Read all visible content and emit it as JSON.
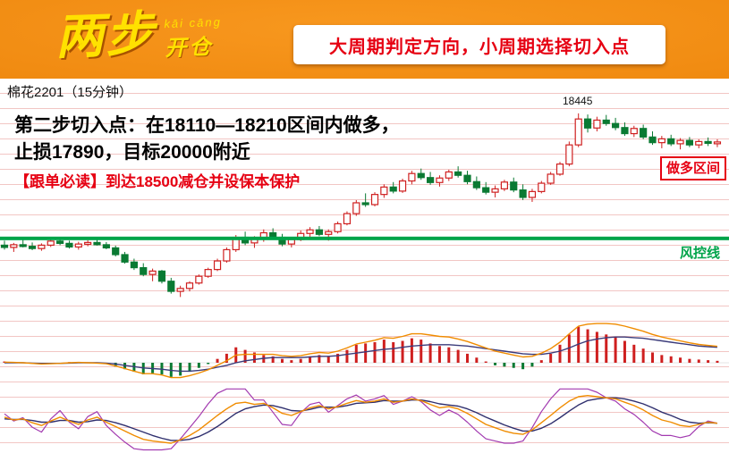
{
  "header": {
    "logo_main": "两步",
    "logo_pinyin": "kāi cāng",
    "logo_sub": "开仓",
    "slogan": "大周期判定方向，小周期选择切入点"
  },
  "chart_header": {
    "instrument": "棉花2201（15分钟）"
  },
  "annotations": {
    "entry_line1": "第二步切入点：在18110—18210区间内做多，",
    "entry_line2": "止损17890，目标20000附近",
    "follow_note": "【跟单必读】到达18500减仓并设保本保护",
    "peak_label": "18445",
    "risk_line_label": "风控线",
    "long_zone_label": "做多区间"
  },
  "colors": {
    "banner_orange": "#f08a10",
    "accent_red": "#e60012",
    "logo_yellow": "#ffe100",
    "up": "#cf1f1f",
    "down": "#0a7a33",
    "risk_line": "#00a44a",
    "dif": "#f08c00",
    "dea": "#3b3b7a",
    "k_line": "#f08c00",
    "d_line": "#2f2f6e",
    "j_line": "#a23ab0"
  },
  "chart_data": {
    "type": "candlestick",
    "title": "棉花2201 15分钟K线",
    "instrument": "棉花2201",
    "timeframe": "15分钟",
    "price_axis": {
      "min": 17580,
      "max": 18500
    },
    "risk_line_value": 17890,
    "peak_value": 18445,
    "entry_zone": [
      18110,
      18210
    ],
    "stop_loss": 17890,
    "target": 20000,
    "reduce_level": 18500,
    "candles": [
      [
        17860,
        17880,
        17840,
        17850
      ],
      [
        17850,
        17870,
        17830,
        17862
      ],
      [
        17862,
        17885,
        17850,
        17855
      ],
      [
        17855,
        17872,
        17838,
        17845
      ],
      [
        17845,
        17868,
        17835,
        17860
      ],
      [
        17860,
        17888,
        17852,
        17878
      ],
      [
        17878,
        17890,
        17860,
        17868
      ],
      [
        17868,
        17880,
        17845,
        17852
      ],
      [
        17852,
        17875,
        17840,
        17865
      ],
      [
        17865,
        17882,
        17855,
        17872
      ],
      [
        17872,
        17886,
        17858,
        17862
      ],
      [
        17862,
        17874,
        17842,
        17848
      ],
      [
        17848,
        17858,
        17810,
        17818
      ],
      [
        17818,
        17830,
        17778,
        17785
      ],
      [
        17785,
        17800,
        17750,
        17760
      ],
      [
        17760,
        17780,
        17722,
        17730
      ],
      [
        17730,
        17756,
        17700,
        17745
      ],
      [
        17745,
        17750,
        17690,
        17700
      ],
      [
        17700,
        17715,
        17645,
        17655
      ],
      [
        17655,
        17680,
        17630,
        17668
      ],
      [
        17668,
        17700,
        17655,
        17692
      ],
      [
        17692,
        17730,
        17685,
        17722
      ],
      [
        17722,
        17760,
        17715,
        17752
      ],
      [
        17752,
        17800,
        17745,
        17790
      ],
      [
        17790,
        17850,
        17782,
        17840
      ],
      [
        17840,
        17905,
        17830,
        17895
      ],
      [
        17895,
        17920,
        17860,
        17870
      ],
      [
        17870,
        17900,
        17848,
        17888
      ],
      [
        17888,
        17930,
        17875,
        17915
      ],
      [
        17915,
        17935,
        17885,
        17895
      ],
      [
        17895,
        17910,
        17855,
        17865
      ],
      [
        17865,
        17895,
        17850,
        17885
      ],
      [
        17885,
        17925,
        17878,
        17912
      ],
      [
        17912,
        17940,
        17895,
        17928
      ],
      [
        17928,
        17945,
        17900,
        17908
      ],
      [
        17908,
        17930,
        17880,
        17920
      ],
      [
        17920,
        17965,
        17912,
        17955
      ],
      [
        17955,
        18010,
        17948,
        18000
      ],
      [
        18000,
        18060,
        17990,
        18048
      ],
      [
        18048,
        18090,
        18030,
        18040
      ],
      [
        18040,
        18095,
        18032,
        18085
      ],
      [
        18085,
        18130,
        18070,
        18118
      ],
      [
        18118,
        18140,
        18090,
        18100
      ],
      [
        18100,
        18155,
        18092,
        18145
      ],
      [
        18145,
        18190,
        18130,
        18178
      ],
      [
        18178,
        18200,
        18150,
        18160
      ],
      [
        18160,
        18185,
        18128,
        18138
      ],
      [
        18138,
        18170,
        18120,
        18158
      ],
      [
        18158,
        18195,
        18145,
        18185
      ],
      [
        18185,
        18210,
        18160,
        18170
      ],
      [
        18170,
        18190,
        18130,
        18142
      ],
      [
        18142,
        18165,
        18105,
        18115
      ],
      [
        18115,
        18140,
        18085,
        18095
      ],
      [
        18095,
        18125,
        18072,
        18110
      ],
      [
        18110,
        18150,
        18100,
        18140
      ],
      [
        18140,
        18160,
        18095,
        18105
      ],
      [
        18105,
        18130,
        18060,
        18072
      ],
      [
        18072,
        18110,
        18052,
        18098
      ],
      [
        18098,
        18145,
        18090,
        18135
      ],
      [
        18135,
        18185,
        18128,
        18175
      ],
      [
        18175,
        18230,
        18168,
        18220
      ],
      [
        18220,
        18320,
        18210,
        18305
      ],
      [
        18305,
        18445,
        18295,
        18420
      ],
      [
        18420,
        18440,
        18360,
        18380
      ],
      [
        18380,
        18430,
        18365,
        18415
      ],
      [
        18415,
        18438,
        18390,
        18400
      ],
      [
        18400,
        18425,
        18370,
        18382
      ],
      [
        18382,
        18405,
        18345,
        18355
      ],
      [
        18355,
        18390,
        18340,
        18378
      ],
      [
        18378,
        18395,
        18330,
        18340
      ],
      [
        18340,
        18365,
        18305,
        18315
      ],
      [
        18315,
        18345,
        18290,
        18332
      ],
      [
        18332,
        18350,
        18300,
        18310
      ],
      [
        18310,
        18335,
        18285,
        18325
      ],
      [
        18325,
        18340,
        18295,
        18305
      ],
      [
        18305,
        18330,
        18290,
        18320
      ],
      [
        18320,
        18338,
        18300,
        18312
      ],
      [
        18312,
        18330,
        18295,
        18318
      ]
    ],
    "macd": {
      "histogram": [
        2,
        1,
        0,
        -1,
        -2,
        -1,
        0,
        1,
        1,
        0,
        -1,
        -2,
        -6,
        -10,
        -14,
        -18,
        -16,
        -18,
        -22,
        -20,
        -14,
        -8,
        -2,
        6,
        14,
        24,
        20,
        16,
        12,
        10,
        6,
        4,
        6,
        10,
        12,
        10,
        14,
        20,
        28,
        30,
        32,
        36,
        32,
        34,
        38,
        36,
        30,
        26,
        24,
        20,
        14,
        8,
        2,
        -4,
        -6,
        -8,
        -10,
        -6,
        4,
        14,
        28,
        44,
        56,
        52,
        48,
        44,
        40,
        34,
        28,
        22,
        16,
        12,
        10,
        8,
        6,
        5,
        4,
        3
      ],
      "dif": [
        1,
        0.5,
        0,
        -1,
        -2,
        -1.5,
        -1,
        0,
        0.5,
        0,
        -0.5,
        -1.5,
        -5,
        -9,
        -13,
        -17,
        -17,
        -19,
        -23,
        -23,
        -20,
        -16,
        -11,
        -4,
        3,
        12,
        13,
        13,
        13,
        13,
        11,
        10,
        11,
        14,
        16,
        15,
        18,
        23,
        29,
        32,
        35,
        39,
        38,
        41,
        45,
        45,
        43,
        41,
        40,
        37,
        33,
        28,
        23,
        18,
        15,
        12,
        9,
        10,
        15,
        22,
        32,
        45,
        57,
        60,
        61,
        61,
        60,
        57,
        53,
        49,
        44,
        40,
        37,
        34,
        31,
        28.5,
        27,
        25.5
      ],
      "dea": [
        0,
        0,
        0,
        -0.5,
        -1,
        -1,
        -1,
        -0.5,
        0,
        0,
        0,
        -0.5,
        -2,
        -4,
        -6,
        -8,
        -9,
        -10,
        -12,
        -13,
        -13,
        -12,
        -10,
        -7,
        -4,
        0,
        3,
        5,
        7,
        8,
        8,
        8,
        8,
        9,
        10,
        10,
        11,
        13,
        15,
        17,
        19,
        21,
        22,
        24,
        26,
        27,
        28,
        28,
        28,
        27,
        26,
        24,
        22,
        20,
        18,
        16,
        14,
        13,
        13,
        15,
        18,
        23,
        29,
        34,
        37,
        39,
        40,
        40,
        39,
        38,
        36,
        34,
        32,
        30,
        28,
        26,
        25,
        24
      ]
    },
    "kdj": {
      "k": [
        55,
        50,
        52,
        45,
        40,
        48,
        55,
        48,
        42,
        50,
        55,
        46,
        38,
        30,
        22,
        15,
        12,
        10,
        8,
        14,
        22,
        32,
        45,
        58,
        70,
        80,
        82,
        78,
        80,
        72,
        62,
        58,
        65,
        72,
        76,
        70,
        74,
        80,
        85,
        82,
        84,
        88,
        82,
        84,
        88,
        85,
        78,
        72,
        74,
        70,
        62,
        52,
        42,
        36,
        30,
        26,
        24,
        32,
        45,
        58,
        72,
        84,
        92,
        94,
        92,
        90,
        88,
        82,
        76,
        68,
        58,
        50,
        46,
        40,
        38,
        42,
        46,
        44
      ],
      "d": [
        52,
        51,
        51,
        49,
        46,
        46,
        49,
        49,
        46,
        47,
        50,
        49,
        45,
        40,
        34,
        28,
        22,
        17,
        13,
        13,
        15,
        20,
        28,
        38,
        50,
        62,
        70,
        74,
        77,
        76,
        72,
        67,
        66,
        69,
        73,
        73,
        73,
        76,
        80,
        81,
        82,
        85,
        84,
        84,
        86,
        86,
        83,
        79,
        77,
        75,
        70,
        63,
        55,
        48,
        41,
        35,
        30,
        30,
        35,
        43,
        54,
        66,
        77,
        85,
        88,
        90,
        90,
        88,
        84,
        79,
        72,
        64,
        58,
        51,
        46,
        44,
        45,
        44
      ]
    }
  }
}
